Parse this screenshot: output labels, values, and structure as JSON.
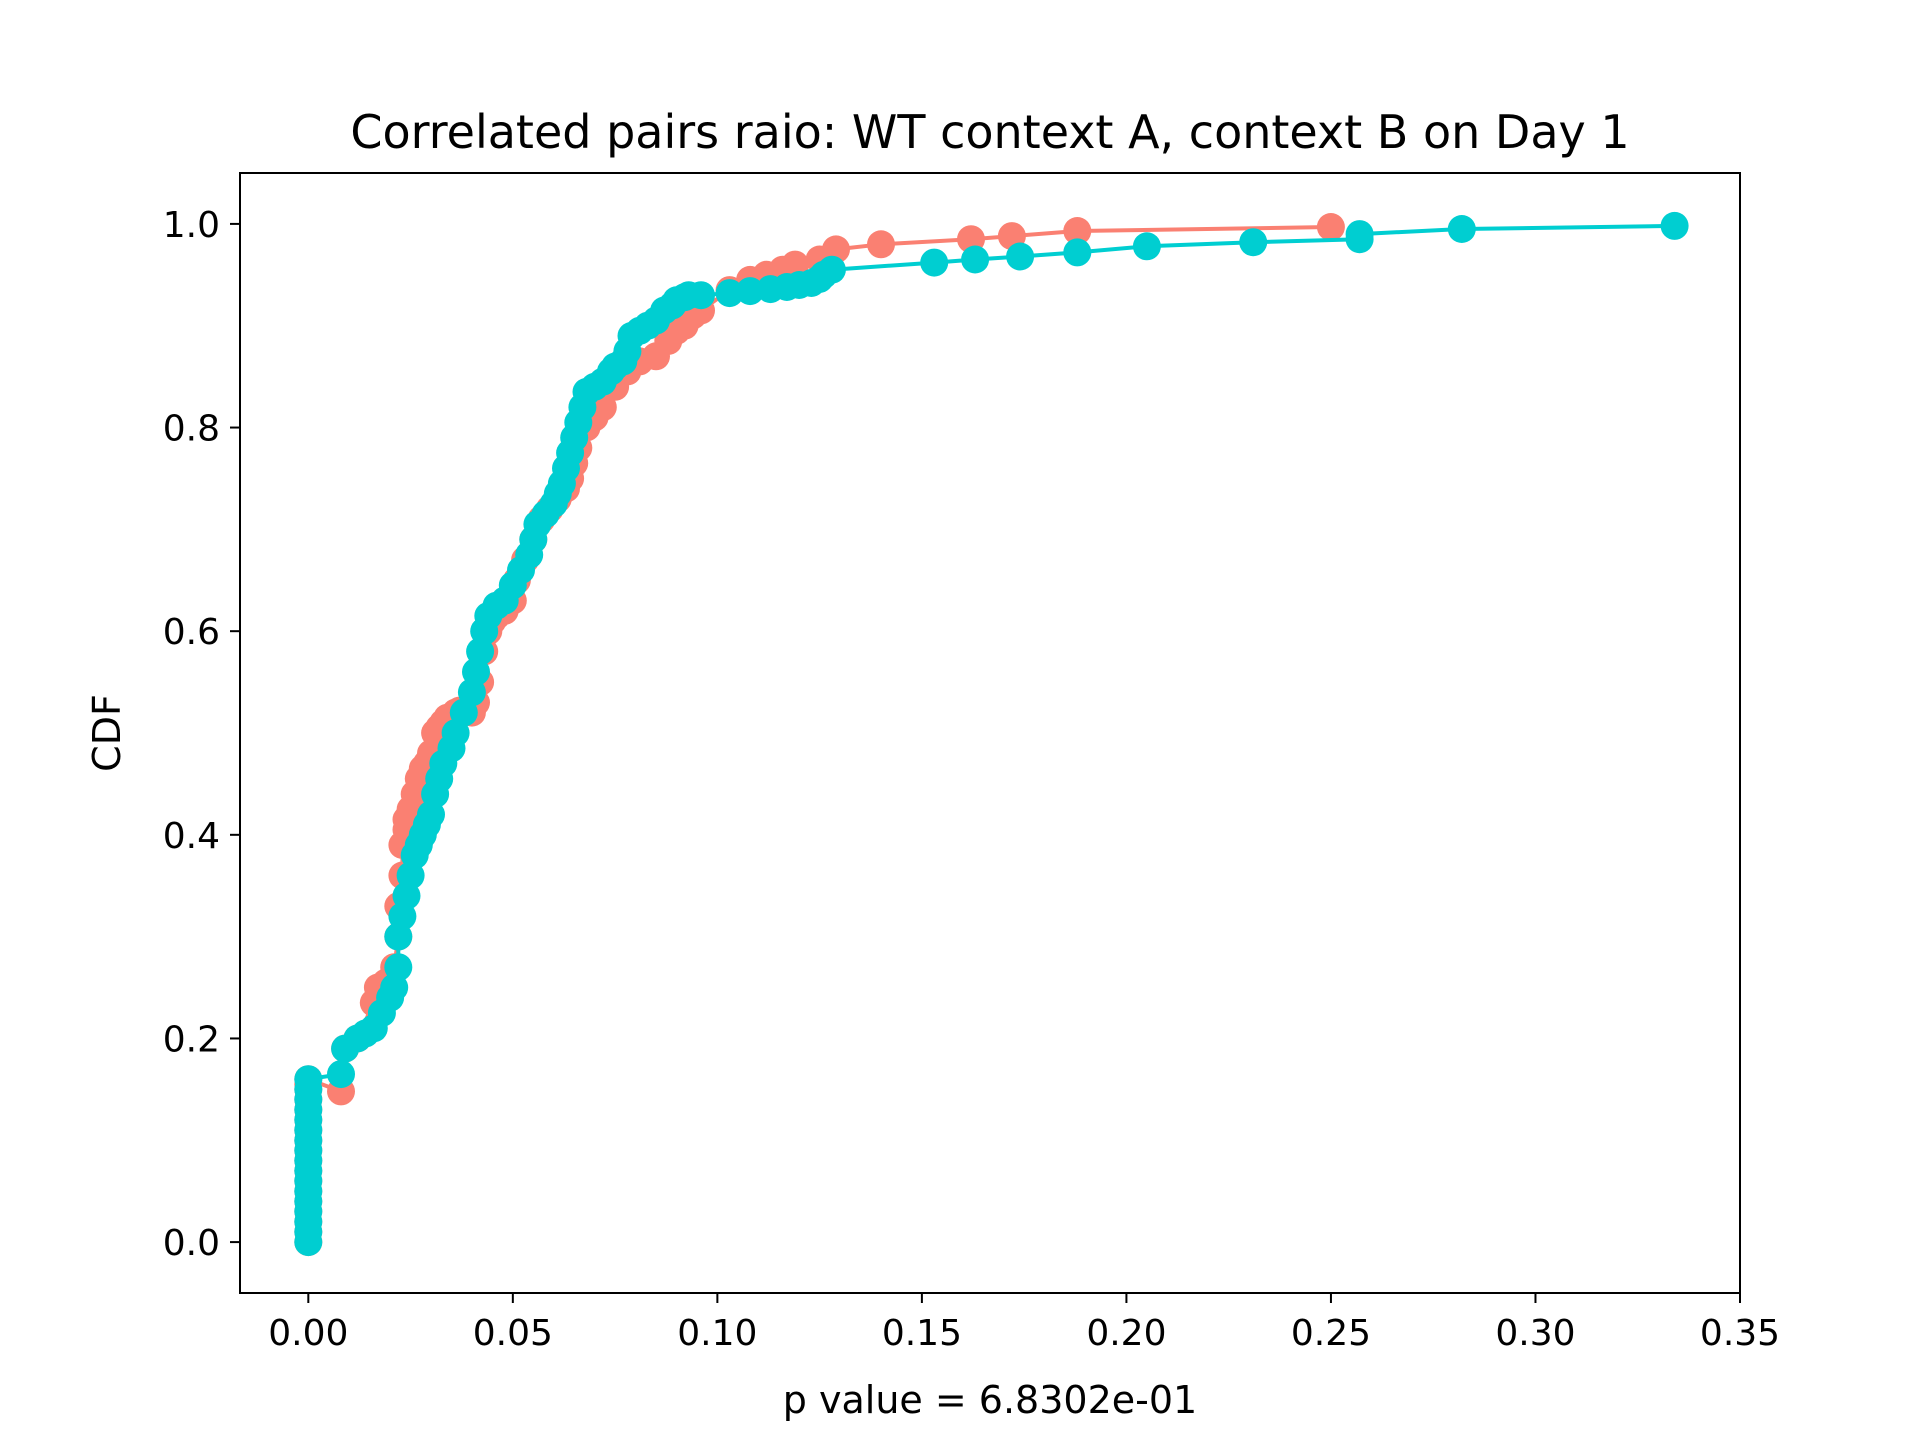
{
  "chart_data": {
    "type": "line",
    "title": "Correlated pairs raio: WT context A, context B on Day 1",
    "xlabel": "p value = 6.8302e-01",
    "ylabel": "CDF",
    "xlim": [
      -0.0167,
      0.35
    ],
    "ylim": [
      -0.05,
      1.05
    ],
    "xticks": [
      0.0,
      0.05,
      0.1,
      0.15,
      0.2,
      0.25,
      0.3,
      0.35
    ],
    "xtick_labels": [
      "0.00",
      "0.05",
      "0.10",
      "0.15",
      "0.20",
      "0.25",
      "0.30",
      "0.35"
    ],
    "yticks": [
      0.0,
      0.2,
      0.4,
      0.6,
      0.8,
      1.0
    ],
    "ytick_labels": [
      "0.0",
      "0.2",
      "0.4",
      "0.6",
      "0.8",
      "1.0"
    ],
    "grid": false,
    "legend": false,
    "series": [
      {
        "color": "#fa8072",
        "x": [
          0.0,
          0.0,
          0.0,
          0.0,
          0.0,
          0.0,
          0.0,
          0.0,
          0.0,
          0.0,
          0.0,
          0.0,
          0.0,
          0.0,
          0.0,
          0.0,
          0.0,
          0.0,
          0.008,
          0.009,
          0.012,
          0.016,
          0.017,
          0.019,
          0.021,
          0.022,
          0.022,
          0.023,
          0.023,
          0.024,
          0.024,
          0.025,
          0.026,
          0.027,
          0.028,
          0.029,
          0.03,
          0.031,
          0.032,
          0.033,
          0.034,
          0.036,
          0.037,
          0.04,
          0.041,
          0.042,
          0.043,
          0.044,
          0.045,
          0.046,
          0.048,
          0.05,
          0.051,
          0.053,
          0.055,
          0.057,
          0.059,
          0.061,
          0.063,
          0.064,
          0.065,
          0.066,
          0.068,
          0.07,
          0.072,
          0.075,
          0.078,
          0.081,
          0.085,
          0.088,
          0.09,
          0.092,
          0.094,
          0.096,
          0.103,
          0.108,
          0.112,
          0.116,
          0.119,
          0.125,
          0.129,
          0.14,
          0.162,
          0.172,
          0.188,
          0.25
        ],
        "y": [
          0.0,
          0.01,
          0.02,
          0.03,
          0.04,
          0.05,
          0.06,
          0.07,
          0.08,
          0.09,
          0.1,
          0.11,
          0.12,
          0.13,
          0.14,
          0.15,
          0.155,
          0.16,
          0.148,
          0.19,
          0.2,
          0.235,
          0.25,
          0.255,
          0.27,
          0.3,
          0.33,
          0.36,
          0.39,
          0.405,
          0.415,
          0.425,
          0.44,
          0.455,
          0.465,
          0.47,
          0.48,
          0.5,
          0.505,
          0.51,
          0.515,
          0.52,
          0.522,
          0.52,
          0.53,
          0.55,
          0.58,
          0.6,
          0.61,
          0.615,
          0.62,
          0.63,
          0.65,
          0.67,
          0.69,
          0.71,
          0.72,
          0.73,
          0.74,
          0.75,
          0.765,
          0.78,
          0.8,
          0.81,
          0.82,
          0.84,
          0.855,
          0.865,
          0.87,
          0.885,
          0.895,
          0.9,
          0.91,
          0.915,
          0.935,
          0.945,
          0.95,
          0.955,
          0.96,
          0.965,
          0.975,
          0.98,
          0.985,
          0.988,
          0.993,
          0.997
        ]
      },
      {
        "color": "#00ced1",
        "x": [
          0.0,
          0.0,
          0.0,
          0.0,
          0.0,
          0.0,
          0.0,
          0.0,
          0.0,
          0.0,
          0.0,
          0.0,
          0.0,
          0.0,
          0.0,
          0.0,
          0.0,
          0.008,
          0.009,
          0.012,
          0.014,
          0.016,
          0.018,
          0.02,
          0.021,
          0.022,
          0.022,
          0.023,
          0.024,
          0.025,
          0.026,
          0.027,
          0.028,
          0.029,
          0.03,
          0.031,
          0.032,
          0.033,
          0.035,
          0.036,
          0.038,
          0.04,
          0.041,
          0.042,
          0.043,
          0.044,
          0.046,
          0.048,
          0.05,
          0.052,
          0.054,
          0.055,
          0.056,
          0.058,
          0.06,
          0.061,
          0.062,
          0.063,
          0.064,
          0.065,
          0.066,
          0.067,
          0.068,
          0.07,
          0.072,
          0.074,
          0.075,
          0.077,
          0.078,
          0.079,
          0.081,
          0.083,
          0.085,
          0.087,
          0.089,
          0.09,
          0.092,
          0.093,
          0.096,
          0.103,
          0.108,
          0.113,
          0.117,
          0.12,
          0.123,
          0.125,
          0.126,
          0.128,
          0.153,
          0.163,
          0.174,
          0.188,
          0.205,
          0.231,
          0.257,
          0.257,
          0.282,
          0.334
        ],
        "y": [
          0.0,
          0.01,
          0.02,
          0.03,
          0.04,
          0.05,
          0.06,
          0.07,
          0.08,
          0.09,
          0.1,
          0.11,
          0.12,
          0.13,
          0.14,
          0.15,
          0.16,
          0.165,
          0.19,
          0.2,
          0.205,
          0.21,
          0.225,
          0.24,
          0.25,
          0.27,
          0.3,
          0.32,
          0.34,
          0.36,
          0.38,
          0.39,
          0.4,
          0.41,
          0.42,
          0.44,
          0.455,
          0.47,
          0.485,
          0.5,
          0.52,
          0.54,
          0.56,
          0.58,
          0.6,
          0.615,
          0.625,
          0.63,
          0.645,
          0.66,
          0.675,
          0.69,
          0.705,
          0.715,
          0.725,
          0.735,
          0.745,
          0.76,
          0.775,
          0.79,
          0.805,
          0.82,
          0.835,
          0.84,
          0.845,
          0.855,
          0.86,
          0.865,
          0.875,
          0.89,
          0.895,
          0.9,
          0.905,
          0.915,
          0.92,
          0.925,
          0.928,
          0.93,
          0.93,
          0.932,
          0.934,
          0.936,
          0.938,
          0.94,
          0.942,
          0.946,
          0.95,
          0.955,
          0.962,
          0.965,
          0.968,
          0.972,
          0.978,
          0.982,
          0.985,
          0.99,
          0.995,
          0.998
        ]
      }
    ]
  }
}
